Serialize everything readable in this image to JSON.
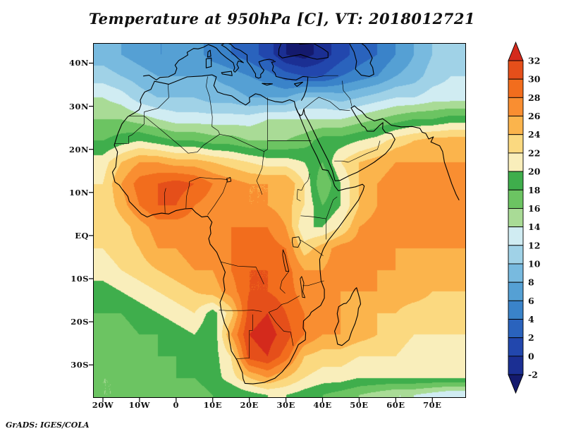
{
  "footer": {
    "credit": "GrADS: IGES/COLA"
  },
  "axes": {
    "y_ticks": [
      {
        "pos": 40,
        "label": "40N"
      },
      {
        "pos": 30,
        "label": "30N"
      },
      {
        "pos": 20,
        "label": "20N"
      },
      {
        "pos": 10,
        "label": "10N"
      },
      {
        "pos": 0,
        "label": "EQ"
      },
      {
        "pos": -10,
        "label": "10S"
      },
      {
        "pos": -20,
        "label": "20S"
      },
      {
        "pos": -30,
        "label": "30S"
      }
    ],
    "x_ticks": [
      {
        "pos": -20,
        "label": "20W"
      },
      {
        "pos": -10,
        "label": "10W"
      },
      {
        "pos": 0,
        "label": "0"
      },
      {
        "pos": 10,
        "label": "10E"
      },
      {
        "pos": 20,
        "label": "20E"
      },
      {
        "pos": 30,
        "label": "30E"
      },
      {
        "pos": 40,
        "label": "40E"
      },
      {
        "pos": 50,
        "label": "50E"
      },
      {
        "pos": 60,
        "label": "60E"
      },
      {
        "pos": 70,
        "label": "70E"
      }
    ]
  },
  "colorbar": {
    "position": "right",
    "labels": [
      "32",
      "30",
      "28",
      "26",
      "24",
      "22",
      "20",
      "18",
      "16",
      "14",
      "12",
      "10",
      "8",
      "6",
      "4",
      "2",
      "0",
      "-2"
    ]
  },
  "chart_data": {
    "type": "heatmap",
    "title": "Temperature at 950hPa [C], VT: 2018012721",
    "variable": "Temperature at 950hPa",
    "units": "C",
    "valid_time": "2018012721",
    "extent": {
      "lon_min": -22.5,
      "lon_max": 79.0,
      "lat_min": -37.5,
      "lat_max": 44.5
    },
    "contour_interval": 2,
    "levels": [
      -2,
      0,
      2,
      4,
      6,
      8,
      10,
      12,
      14,
      16,
      18,
      20,
      22,
      24,
      26,
      28,
      30,
      32
    ],
    "colors": [
      "#141a6e",
      "#1b2f93",
      "#2247ad",
      "#2a63bd",
      "#3a83c9",
      "#55a0d4",
      "#78badf",
      "#a0d2e7",
      "#d0ecf2",
      "#a9db96",
      "#6cc462",
      "#3fae4c",
      "#f9eebb",
      "#fbd980",
      "#fbb44c",
      "#f98e31",
      "#f26d1d",
      "#e54f1a",
      "#d42a1c"
    ],
    "grid_lons": [
      -20,
      -15,
      -10,
      -5,
      0,
      5,
      10,
      15,
      20,
      25,
      30,
      35,
      40,
      45,
      50,
      55,
      60,
      65,
      70,
      75
    ],
    "grid_lats": [
      42,
      37,
      32,
      27,
      22,
      17,
      12,
      7,
      2,
      -3,
      -8,
      -13,
      -18,
      -23,
      -28,
      -33,
      -37
    ],
    "values": [
      [
        9,
        8,
        7,
        6,
        6,
        7,
        5,
        4,
        3,
        1,
        -2,
        -3,
        -1,
        1,
        3,
        4,
        6,
        8,
        10,
        11
      ],
      [
        11,
        10,
        9,
        8,
        8,
        8,
        8,
        7,
        6,
        5,
        3,
        2,
        2,
        4,
        5,
        6,
        8,
        9,
        11,
        12
      ],
      [
        14,
        13,
        11,
        10,
        10,
        10,
        9,
        9,
        8,
        8,
        8,
        10,
        10,
        9,
        10,
        11,
        12,
        12,
        13,
        13
      ],
      [
        16,
        16,
        15,
        14,
        13,
        13,
        13,
        13,
        13,
        14,
        14,
        14,
        14,
        14,
        15,
        16,
        17,
        18,
        18,
        19
      ],
      [
        18,
        19,
        20,
        19,
        18,
        18,
        17,
        17,
        16,
        16,
        16,
        17,
        19,
        19,
        20,
        21,
        23,
        24,
        25,
        25
      ],
      [
        21,
        24,
        26,
        26,
        25,
        25,
        24,
        23,
        22,
        21,
        21,
        20,
        18,
        22,
        24,
        25,
        26,
        26,
        26,
        26
      ],
      [
        22,
        26,
        29,
        30,
        31,
        30,
        28,
        27,
        26,
        26,
        26,
        22,
        16,
        20,
        24,
        26,
        27,
        27,
        27,
        27
      ],
      [
        22,
        25,
        28,
        30,
        30,
        28,
        27,
        26,
        26,
        26,
        25,
        22,
        18,
        20,
        24,
        26,
        27,
        27,
        27,
        27
      ],
      [
        22,
        23,
        25,
        27,
        27,
        27,
        27,
        28,
        28,
        28,
        26,
        20,
        20,
        22,
        26,
        27,
        27,
        27,
        27,
        27
      ],
      [
        22,
        23,
        24,
        26,
        26,
        27,
        27,
        28,
        29,
        29,
        28,
        23,
        25,
        27,
        27,
        27,
        26,
        26,
        26,
        26
      ],
      [
        21,
        22,
        23,
        24,
        25,
        26,
        26,
        28,
        30,
        30,
        29,
        26,
        26,
        27,
        27,
        26,
        26,
        25,
        25,
        25
      ],
      [
        19,
        20,
        21,
        22,
        23,
        24,
        25,
        27,
        30,
        30,
        29,
        27,
        26,
        26,
        26,
        26,
        25,
        25,
        24,
        24
      ],
      [
        18,
        18,
        19,
        20,
        21,
        22,
        19,
        23,
        31,
        32,
        30,
        28,
        27,
        26,
        25,
        24,
        24,
        23,
        23,
        23
      ],
      [
        17,
        17,
        18,
        18,
        19,
        20,
        18,
        26,
        32,
        33,
        31,
        28,
        26,
        26,
        25,
        24,
        23,
        22,
        22,
        22
      ],
      [
        17,
        17,
        17,
        18,
        18,
        19,
        19,
        22,
        31,
        32,
        29,
        24,
        23,
        23,
        22,
        22,
        22,
        21,
        21,
        21
      ],
      [
        16,
        16,
        17,
        17,
        18,
        18,
        19,
        21,
        24,
        26,
        24,
        22,
        21,
        21,
        20,
        20,
        20,
        20,
        20,
        20
      ],
      [
        16,
        16,
        16,
        17,
        17,
        17,
        18,
        18,
        19,
        20,
        20,
        19,
        18,
        17,
        16,
        15,
        14,
        14,
        13,
        12
      ]
    ]
  }
}
